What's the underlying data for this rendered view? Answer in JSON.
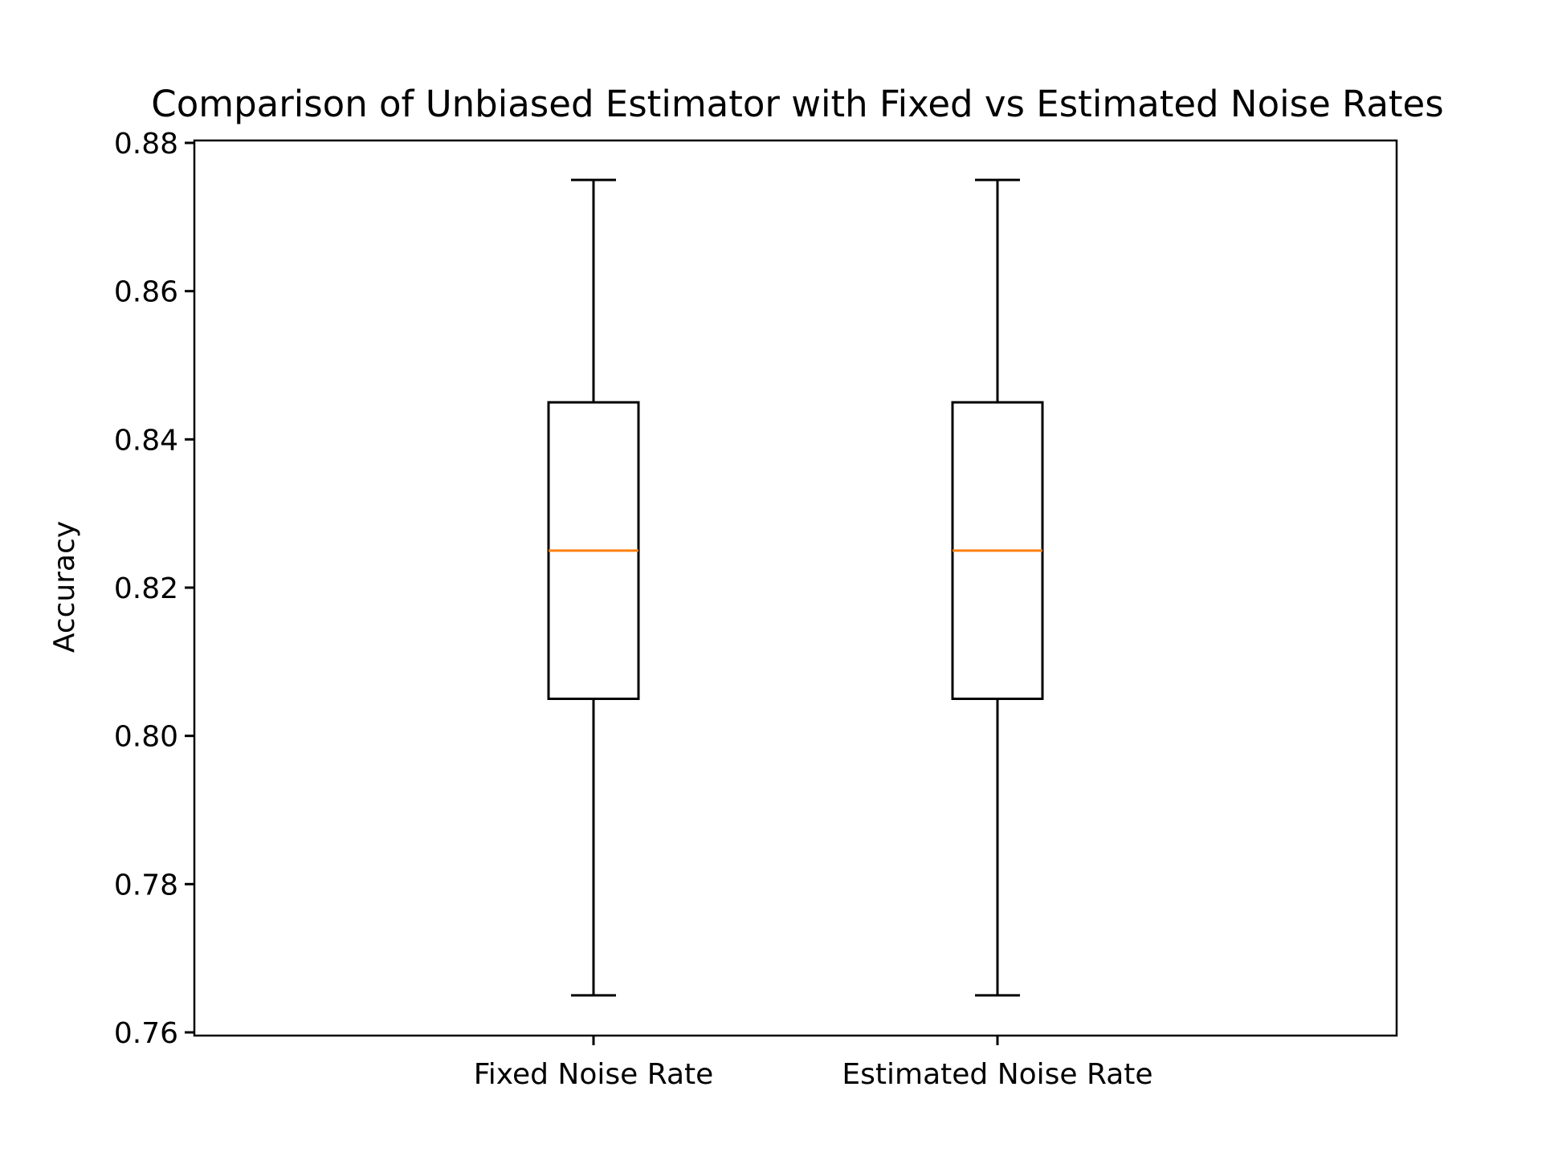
{
  "chart_data": {
    "type": "box",
    "title": "Comparison of Unbiased Estimator with Fixed vs Estimated Noise Rates",
    "xlabel": "",
    "ylabel": "Accuracy",
    "ylim": [
      0.76,
      0.88
    ],
    "yticks": [
      "0.76",
      "0.78",
      "0.80",
      "0.82",
      "0.84",
      "0.86",
      "0.88"
    ],
    "categories": [
      "Fixed Noise Rate",
      "Estimated Noise Rate"
    ],
    "boxes": [
      {
        "whisker_low": 0.765,
        "q1": 0.805,
        "median": 0.825,
        "q3": 0.845,
        "whisker_high": 0.875
      },
      {
        "whisker_low": 0.765,
        "q1": 0.805,
        "median": 0.825,
        "q3": 0.845,
        "whisker_high": 0.875
      }
    ],
    "grid": false,
    "colors": {
      "box": "#000000",
      "median": "#ff7f0e"
    }
  }
}
